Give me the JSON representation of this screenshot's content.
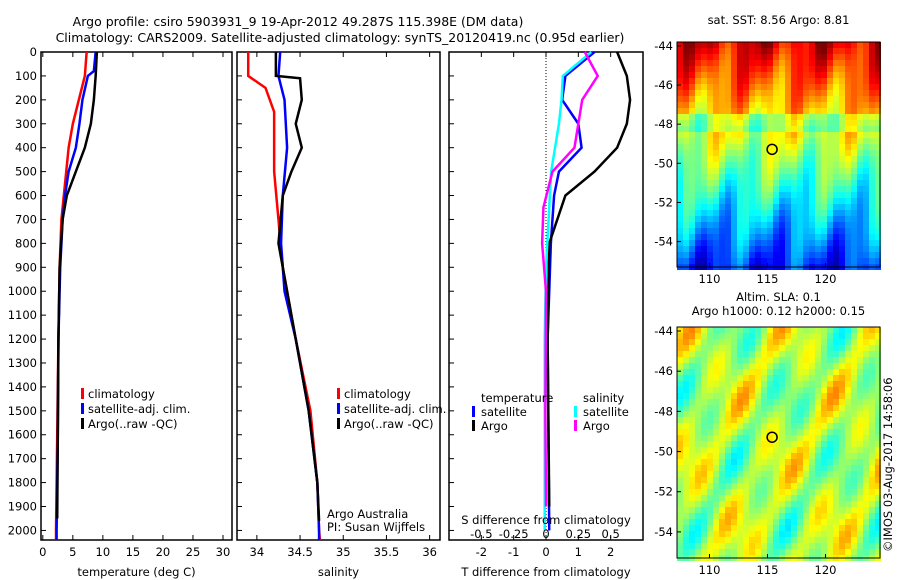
{
  "title": {
    "line1": "Argo profile: csiro 5903931_9 19-Apr-2012 49.287S 115.398E (DM data)",
    "line2": "Climatology: CARS2009. Satellite-adjusted climatology: synTS_20120419.nc (0.95d earlier)"
  },
  "credit": "©IMOS 03-Aug-2017 14:58:06",
  "colors": {
    "clim": "#ff0000",
    "sat": "#0000ff",
    "argo": "#000000",
    "ssat": "#00ffff",
    "sargo": "#ff00ff"
  },
  "chart_data": [
    {
      "type": "line",
      "name": "temperature",
      "xlabel": "temperature (deg C)",
      "xlim": [
        -0.3,
        31.5
      ],
      "ylim": [
        2040,
        0
      ],
      "xticks": [
        0,
        5,
        10,
        15,
        20,
        25,
        30
      ],
      "yticks": [
        0,
        100,
        200,
        300,
        400,
        500,
        600,
        700,
        800,
        900,
        1000,
        1100,
        1200,
        1300,
        1400,
        1500,
        1600,
        1700,
        1800,
        1900,
        2000
      ],
      "legend": [
        "climatology",
        "satellite-adj. clim.",
        "Argo(..raw -QC)"
      ],
      "series": [
        {
          "name": "climatology",
          "color": "clim",
          "depth": [
            0,
            100,
            200,
            300,
            400,
            500,
            600,
            700,
            900,
            1200,
            1600,
            2000,
            2040
          ],
          "values": [
            7.3,
            7.0,
            6.0,
            5.0,
            4.3,
            3.9,
            3.5,
            3.1,
            2.8,
            2.6,
            2.4,
            2.2,
            2.2
          ]
        },
        {
          "name": "satellite-adj. clim.",
          "color": "sat",
          "depth": [
            0,
            80,
            100,
            200,
            300,
            400,
            500,
            600,
            700,
            900,
            1200,
            1600,
            2000,
            2040
          ],
          "values": [
            8.8,
            8.5,
            7.5,
            6.6,
            6.1,
            5.5,
            4.3,
            3.7,
            3.3,
            2.9,
            2.6,
            2.5,
            2.3,
            2.3
          ]
        },
        {
          "name": "Argo(..raw -QC)",
          "color": "argo",
          "depth": [
            0,
            100,
            200,
            300,
            400,
            500,
            600,
            700,
            900,
            1200,
            1600,
            1950
          ],
          "values": [
            9.0,
            8.8,
            8.5,
            8.0,
            7.0,
            5.5,
            4.0,
            3.3,
            2.8,
            2.6,
            2.5,
            2.4
          ]
        }
      ]
    },
    {
      "type": "line",
      "name": "salinity",
      "xlabel": "salinity",
      "xlim": [
        33.77,
        36.12
      ],
      "ylim": [
        2040,
        0
      ],
      "xticks": [
        34,
        34.5,
        35,
        35.5,
        36
      ],
      "legend": [
        "climatology",
        "satellite-adj. clim.",
        "Argo(..raw -QC)"
      ],
      "annotation": [
        "Argo Australia",
        "PI: Susan Wijffels"
      ],
      "series": [
        {
          "name": "climatology",
          "color": "clim",
          "depth": [
            0,
            100,
            150,
            250,
            500,
            700,
            900,
            1200,
            1500,
            1800,
            2000,
            2040
          ],
          "values": [
            33.9,
            33.9,
            34.1,
            34.2,
            34.2,
            34.25,
            34.3,
            34.45,
            34.62,
            34.7,
            34.72,
            34.73
          ]
        },
        {
          "name": "satellite-adj. clim.",
          "color": "sat",
          "depth": [
            0,
            100,
            200,
            400,
            600,
            800,
            1000,
            1200,
            1500,
            1800,
            2000,
            2040
          ],
          "values": [
            34.27,
            34.25,
            34.32,
            34.35,
            34.3,
            34.28,
            34.32,
            34.45,
            34.6,
            34.7,
            34.72,
            34.72
          ]
        },
        {
          "name": "Argo(..raw -QC)",
          "color": "argo",
          "depth": [
            0,
            100,
            110,
            200,
            300,
            400,
            500,
            600,
            800,
            1000,
            1200,
            1500,
            1800,
            1960
          ],
          "values": [
            34.22,
            34.22,
            34.5,
            34.52,
            34.45,
            34.52,
            34.4,
            34.3,
            34.25,
            34.35,
            34.45,
            34.6,
            34.7,
            34.72
          ]
        }
      ]
    },
    {
      "type": "line",
      "name": "difference",
      "xlabel": "T difference from climatology",
      "x2label": "S difference from climatology",
      "xlim": [
        -3,
        3
      ],
      "x2lim": [
        -0.75,
        0.75
      ],
      "ylim": [
        2040,
        0
      ],
      "xticks": [
        -2,
        -1,
        0,
        1,
        2
      ],
      "x2ticks": [
        -0.5,
        -0.25,
        0,
        0.25,
        0.5
      ],
      "x2ticklabels": [
        "-0.5",
        "-0.25",
        "0",
        "0.25",
        "0.5"
      ],
      "legend": {
        "temperature": "temperature",
        "salinity": "salinity",
        "tsat": "satellite",
        "targo": "Argo",
        "ssat": "satellite",
        "sargo": "Argo"
      },
      "series": [
        {
          "name": "T satellite",
          "color": "sat",
          "axis": "T",
          "depth": [
            0,
            100,
            200,
            300,
            400,
            500,
            600,
            800,
            1200,
            2000
          ],
          "values": [
            1.5,
            0.6,
            0.5,
            1.0,
            1.1,
            0.4,
            0.25,
            0.15,
            0.05,
            0.1
          ]
        },
        {
          "name": "T Argo",
          "color": "argo",
          "axis": "T",
          "depth": [
            0,
            100,
            200,
            300,
            400,
            500,
            600,
            800,
            1200,
            1900
          ],
          "values": [
            2.2,
            2.5,
            2.6,
            2.5,
            2.2,
            1.5,
            0.6,
            0.1,
            0.05,
            0.1
          ]
        },
        {
          "name": "S satellite",
          "color": "ssat",
          "axis": "S",
          "depth": [
            0,
            100,
            200,
            300,
            500,
            700,
            900,
            1200,
            2000
          ],
          "values": [
            0.35,
            0.13,
            0.12,
            0.1,
            0.04,
            0.02,
            0,
            -0.01,
            -0.01
          ]
        },
        {
          "name": "S Argo",
          "color": "sargo",
          "axis": "S",
          "depth": [
            0,
            100,
            200,
            300,
            400,
            500,
            650,
            800,
            1000,
            1500,
            1900
          ],
          "values": [
            0.3,
            0.4,
            0.28,
            0.25,
            0.22,
            0.05,
            -0.02,
            -0.03,
            0,
            -0.005,
            0
          ]
        }
      ]
    },
    {
      "type": "heatmap",
      "name": "sst-map",
      "title": "sat. SST: 8.56 Argo: 8.81",
      "xlim": [
        107.2,
        124.7
      ],
      "ylim": [
        -55.3,
        -43.8
      ],
      "xticks": [
        110,
        115,
        120
      ],
      "yticks": [
        -44,
        -46,
        -48,
        -50,
        -52,
        -54
      ],
      "marker": [
        115.398,
        -49.287
      ]
    },
    {
      "type": "heatmap",
      "name": "sla-map",
      "title1": "Altim. SLA: 0.1",
      "title2": "Argo h1000: 0.12 h2000: 0.15",
      "xlim": [
        107.2,
        124.7
      ],
      "ylim": [
        -55.3,
        -43.8
      ],
      "xticks": [
        110,
        115,
        120
      ],
      "yticks": [
        -44,
        -46,
        -48,
        -50,
        -52,
        -54
      ],
      "marker": [
        115.398,
        -49.287
      ]
    }
  ]
}
